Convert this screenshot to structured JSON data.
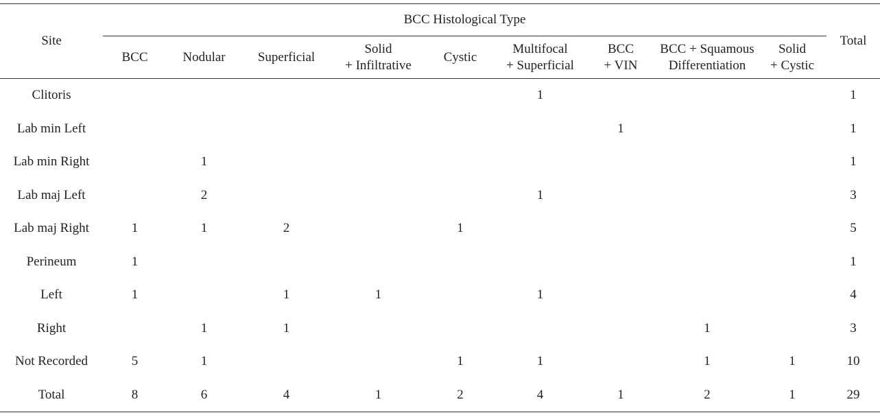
{
  "table": {
    "site_header": "Site",
    "group_header": "BCC Histological Type",
    "total_header": "Total",
    "columns": [
      "BCC",
      "Nodular",
      "Superficial",
      "Solid\n+ Infiltrative",
      "Cystic",
      "Multifocal\n+ Superficial",
      "BCC\n+ VIN",
      "BCC + Squamous\nDifferentiation",
      "Solid\n+ Cystic"
    ],
    "rows": [
      {
        "site": "Clitoris",
        "cells": [
          null,
          null,
          null,
          null,
          null,
          1,
          null,
          null,
          null
        ],
        "total": 1
      },
      {
        "site": "Lab min Left",
        "cells": [
          null,
          null,
          null,
          null,
          null,
          null,
          1,
          null,
          null
        ],
        "total": 1
      },
      {
        "site": "Lab min Right",
        "cells": [
          null,
          1,
          null,
          null,
          null,
          null,
          null,
          null,
          null
        ],
        "total": 1
      },
      {
        "site": "Lab maj Left",
        "cells": [
          null,
          2,
          null,
          null,
          null,
          1,
          null,
          null,
          null
        ],
        "total": 3
      },
      {
        "site": "Lab maj Right",
        "cells": [
          1,
          1,
          2,
          null,
          1,
          null,
          null,
          null,
          null
        ],
        "total": 5
      },
      {
        "site": "Perineum",
        "cells": [
          1,
          null,
          null,
          null,
          null,
          null,
          null,
          null,
          null
        ],
        "total": 1
      },
      {
        "site": "Left",
        "cells": [
          1,
          null,
          1,
          1,
          null,
          1,
          null,
          null,
          null
        ],
        "total": 4
      },
      {
        "site": "Right",
        "cells": [
          null,
          1,
          1,
          null,
          null,
          null,
          null,
          1,
          null
        ],
        "total": 3
      },
      {
        "site": "Not Recorded",
        "cells": [
          5,
          1,
          null,
          null,
          1,
          1,
          null,
          1,
          1
        ],
        "total": 10
      },
      {
        "site": "Total",
        "cells": [
          8,
          6,
          4,
          1,
          2,
          4,
          1,
          2,
          1
        ],
        "total": 29
      }
    ]
  }
}
